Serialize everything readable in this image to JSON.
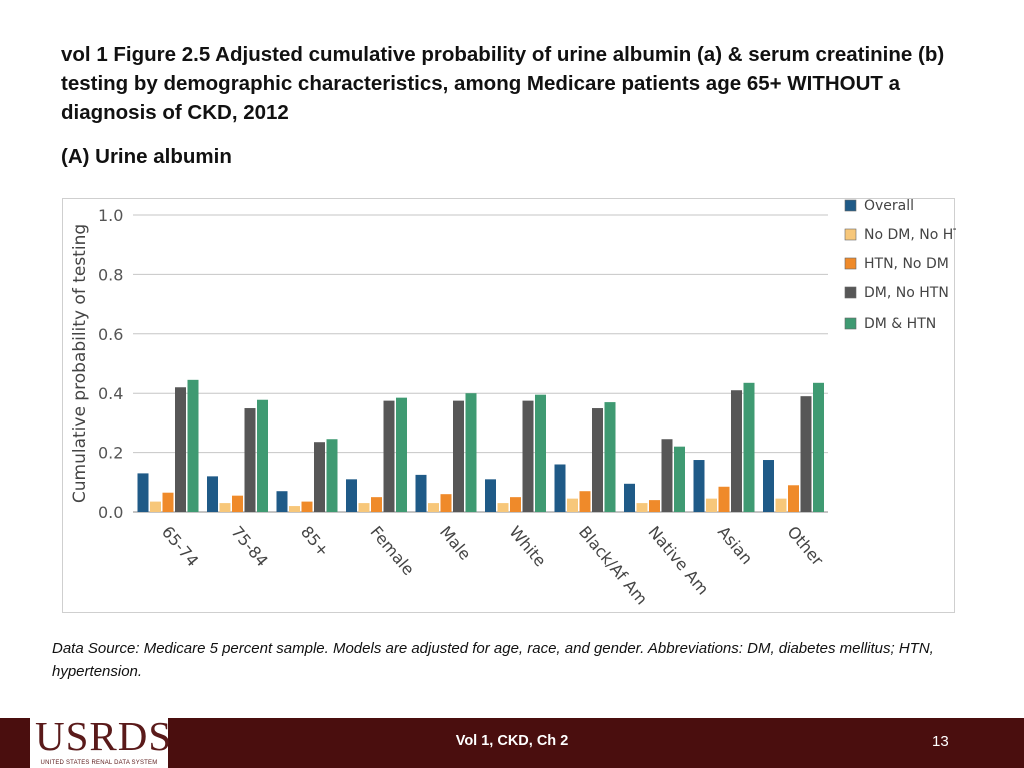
{
  "slide": {
    "title": "vol 1 Figure 2.5 Adjusted cumulative probability of urine albumin (a) & serum creatinine (b) testing by demographic characteristics, among Medicare patients age 65+ WITHOUT a diagnosis of CKD, 2012",
    "panel_label": "(A) Urine albumin",
    "caption": "Data Source: Medicare 5 percent sample. Models are adjusted for age, race, and gender. Abbreviations: DM, diabetes mellitus; HTN, hypertension."
  },
  "footer": {
    "center_text": "Vol 1, CKD, Ch 2",
    "page_number": "13",
    "logo_text": "USRDS",
    "logo_subtext": "UNITED STATES RENAL DATA SYSTEM",
    "bar_color": "#4a0e0e"
  },
  "chart_data": {
    "type": "bar",
    "title": "",
    "xlabel": "",
    "ylabel": "Cumulative probability of testing",
    "ylim": [
      0,
      1.0
    ],
    "yticks": [
      "0.0",
      "0.2",
      "0.4",
      "0.6",
      "0.8",
      "1.0"
    ],
    "grid": true,
    "legend_position": "top-right",
    "categories": [
      "65-74",
      "75-84",
      "85+",
      "Female",
      "Male",
      "White",
      "Black/Af Am",
      "Native Am",
      "Asian",
      "Other"
    ],
    "series": [
      {
        "name": "Overall",
        "color": "#1f5a87",
        "values": [
          0.13,
          0.12,
          0.07,
          0.11,
          0.125,
          0.11,
          0.16,
          0.095,
          0.175,
          0.175
        ]
      },
      {
        "name": "No DM, No HTN",
        "color": "#f7c77a",
        "values": [
          0.035,
          0.03,
          0.02,
          0.03,
          0.03,
          0.03,
          0.045,
          0.03,
          0.045,
          0.045
        ]
      },
      {
        "name": "HTN, No DM",
        "color": "#ef8a2a",
        "values": [
          0.065,
          0.055,
          0.035,
          0.05,
          0.06,
          0.05,
          0.07,
          0.04,
          0.085,
          0.09
        ]
      },
      {
        "name": "DM, No HTN",
        "color": "#575757",
        "values": [
          0.42,
          0.35,
          0.235,
          0.375,
          0.375,
          0.375,
          0.35,
          0.245,
          0.41,
          0.39
        ]
      },
      {
        "name": "DM & HTN",
        "color": "#3f9a72",
        "values": [
          0.445,
          0.378,
          0.245,
          0.385,
          0.4,
          0.395,
          0.37,
          0.22,
          0.435,
          0.435
        ]
      }
    ]
  }
}
